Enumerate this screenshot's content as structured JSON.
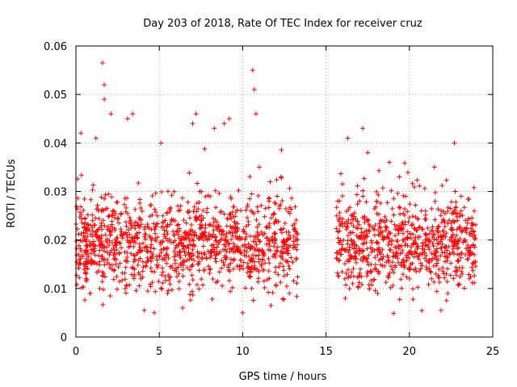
{
  "chart_data": {
    "type": "scatter",
    "title": "Day 203 of 2018, Rate Of TEC Index for receiver cruz",
    "xlabel": "GPS time / hours",
    "ylabel": "ROTI / TECUs",
    "xlim": [
      0,
      25
    ],
    "ylim": [
      0,
      0.06
    ],
    "x_ticks": [
      0,
      5,
      10,
      15,
      20,
      25
    ],
    "x_tick_labels": [
      "0",
      "5",
      "10",
      "15",
      "20",
      "25"
    ],
    "y_ticks": [
      0,
      0.01,
      0.02,
      0.03,
      0.04,
      0.05,
      0.06
    ],
    "y_tick_labels": [
      "0",
      "0.01",
      "0.02",
      "0.03",
      "0.04",
      "0.05",
      "0.06"
    ],
    "grid": true,
    "marker": "+",
    "series": [
      {
        "name": "ROTI",
        "color": "#ff0000",
        "segments": [
          {
            "x_start": 0.0,
            "x_end": 13.3
          },
          {
            "x_start": 15.6,
            "x_end": 24.0
          }
        ],
        "sample_points": [
          {
            "x": 0.2,
            "y": 0.016
          },
          {
            "x": 0.3,
            "y": 0.042
          },
          {
            "x": 0.6,
            "y": 0.012
          },
          {
            "x": 1.0,
            "y": 0.024
          },
          {
            "x": 1.2,
            "y": 0.041
          },
          {
            "x": 1.6,
            "y": 0.0565
          },
          {
            "x": 1.7,
            "y": 0.052
          },
          {
            "x": 1.7,
            "y": 0.049
          },
          {
            "x": 2.1,
            "y": 0.046
          },
          {
            "x": 2.4,
            "y": 0.015
          },
          {
            "x": 3.1,
            "y": 0.045
          },
          {
            "x": 3.4,
            "y": 0.046
          },
          {
            "x": 3.9,
            "y": 0.012
          },
          {
            "x": 4.1,
            "y": 0.0055
          },
          {
            "x": 4.7,
            "y": 0.005
          },
          {
            "x": 5.1,
            "y": 0.04
          },
          {
            "x": 5.5,
            "y": 0.009
          },
          {
            "x": 6.4,
            "y": 0.006
          },
          {
            "x": 7.0,
            "y": 0.044
          },
          {
            "x": 7.2,
            "y": 0.046
          },
          {
            "x": 7.5,
            "y": 0.024
          },
          {
            "x": 8.3,
            "y": 0.043
          },
          {
            "x": 8.9,
            "y": 0.044
          },
          {
            "x": 9.2,
            "y": 0.045
          },
          {
            "x": 9.5,
            "y": 0.016
          },
          {
            "x": 10.0,
            "y": 0.005
          },
          {
            "x": 10.6,
            "y": 0.055
          },
          {
            "x": 10.7,
            "y": 0.051
          },
          {
            "x": 10.8,
            "y": 0.046
          },
          {
            "x": 11.0,
            "y": 0.035
          },
          {
            "x": 11.7,
            "y": 0.0065
          },
          {
            "x": 12.3,
            "y": 0.033
          },
          {
            "x": 12.8,
            "y": 0.009
          },
          {
            "x": 13.2,
            "y": 0.016
          },
          {
            "x": 15.7,
            "y": 0.028
          },
          {
            "x": 16.3,
            "y": 0.041
          },
          {
            "x": 16.6,
            "y": 0.011
          },
          {
            "x": 17.2,
            "y": 0.043
          },
          {
            "x": 17.5,
            "y": 0.038
          },
          {
            "x": 18.1,
            "y": 0.009
          },
          {
            "x": 18.8,
            "y": 0.036
          },
          {
            "x": 19.4,
            "y": 0.033
          },
          {
            "x": 20.0,
            "y": 0.012
          },
          {
            "x": 20.9,
            "y": 0.018
          },
          {
            "x": 21.5,
            "y": 0.035
          },
          {
            "x": 21.9,
            "y": 0.0055
          },
          {
            "x": 22.3,
            "y": 0.009
          },
          {
            "x": 22.7,
            "y": 0.04
          },
          {
            "x": 23.1,
            "y": 0.026
          },
          {
            "x": 23.6,
            "y": 0.012
          },
          {
            "x": 23.9,
            "y": 0.021
          }
        ],
        "typical_range": [
          0.008,
          0.03
        ]
      }
    ]
  }
}
